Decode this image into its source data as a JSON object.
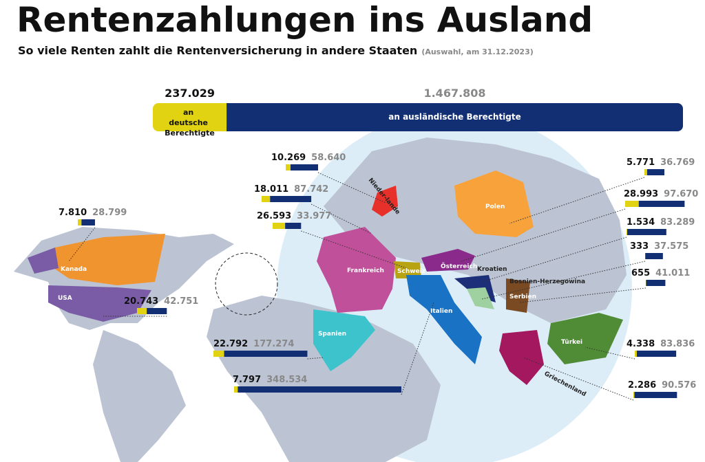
{
  "header": {
    "title": "Rentenzahlungen ins Ausland",
    "subtitle": "So viele Renten zahlt die Rentenversicherung in andere Staaten",
    "note": "(Auswahl, am 31.12.2023)"
  },
  "total": {
    "german": {
      "value": 237029,
      "label": "237.029"
    },
    "foreign": {
      "value": 1467808,
      "label": "1.467.808"
    },
    "german_label": "an deutsche Berechtigte",
    "foreign_label": "an ausländische Berechtigte",
    "german_color": "#e2d312",
    "foreign_color": "#122f73"
  },
  "countries": [
    {
      "name": "Nieder-lande",
      "german": {
        "value": 10269,
        "label": "10.269"
      },
      "foreign": {
        "value": 58640,
        "label": "58.640"
      },
      "color": "#e8302a"
    },
    {
      "name": "Frankreich",
      "german": {
        "value": 18011,
        "label": "18.011"
      },
      "foreign": {
        "value": 87742,
        "label": "87.742"
      },
      "color": "#c0509a"
    },
    {
      "name": "Schweiz",
      "german": {
        "value": 26593,
        "label": "26.593"
      },
      "foreign": {
        "value": 33977,
        "label": "33.977"
      },
      "color": "#b8a312"
    },
    {
      "name": "Spanien",
      "german": {
        "value": 22792,
        "label": "22.792"
      },
      "foreign": {
        "value": 177274,
        "label": "177.274"
      },
      "color": "#3cc3cc"
    },
    {
      "name": "Italien",
      "german": {
        "value": 7797,
        "label": "7.797"
      },
      "foreign": {
        "value": 348534,
        "label": "348.534"
      },
      "color": "#1a72c4"
    },
    {
      "name": "Kanada",
      "german": {
        "value": 7810,
        "label": "7.810"
      },
      "foreign": {
        "value": 28799,
        "label": "28.799"
      },
      "color": "#f09430"
    },
    {
      "name": "USA",
      "german": {
        "value": 20743,
        "label": "20.743"
      },
      "foreign": {
        "value": 42751,
        "label": "42.751"
      },
      "color": "#7a5ca6"
    },
    {
      "name": "Polen",
      "german": {
        "value": 5771,
        "label": "5.771"
      },
      "foreign": {
        "value": 36769,
        "label": "36.769"
      },
      "color": "#f7a23a"
    },
    {
      "name": "Österreich",
      "german": {
        "value": 28993,
        "label": "28.993"
      },
      "foreign": {
        "value": 97670,
        "label": "97.670"
      },
      "color": "#8a2a8a"
    },
    {
      "name": "Kroatien",
      "german": {
        "value": 1534,
        "label": "1.534"
      },
      "foreign": {
        "value": 83289,
        "label": "83.289"
      },
      "color": "#1c2f78"
    },
    {
      "name": "Bosnien-Herzegowina",
      "german": {
        "value": 333,
        "label": "333"
      },
      "foreign": {
        "value": 37575,
        "label": "37.575"
      },
      "color": "#9fd0a0"
    },
    {
      "name": "Serbien",
      "german": {
        "value": 655,
        "label": "655"
      },
      "foreign": {
        "value": 41011,
        "label": "41.011"
      },
      "color": "#7a4a22"
    },
    {
      "name": "Türkei",
      "german": {
        "value": 4338,
        "label": "4.338"
      },
      "foreign": {
        "value": 83836,
        "label": "83.836"
      },
      "color": "#4f8c35"
    },
    {
      "name": "Griechenland",
      "german": {
        "value": 2286,
        "label": "2.286"
      },
      "foreign": {
        "value": 90576,
        "label": "90.576"
      },
      "color": "#a3185e"
    }
  ]
}
